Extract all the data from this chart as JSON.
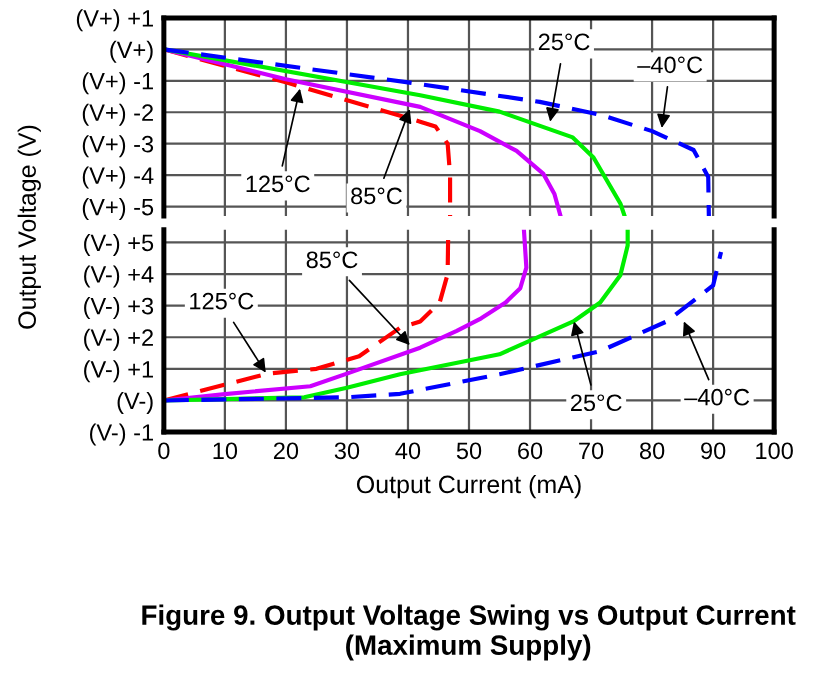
{
  "chart_data": [
    {
      "type": "line",
      "ylabel": "Output Voltage (V)",
      "xlim": [
        0,
        100
      ],
      "xticks": [
        0,
        10,
        20,
        30,
        40,
        50,
        60,
        70,
        80,
        90,
        100
      ],
      "ylim": [
        -5.3,
        1
      ],
      "yticks": [
        {
          "value": 1,
          "label": "(V+) +1"
        },
        {
          "value": 0,
          "label": "(V+)"
        },
        {
          "value": -1,
          "label": "(V+) -1"
        },
        {
          "value": -2,
          "label": "(V+) -2"
        },
        {
          "value": -3,
          "label": "(V+) -3"
        },
        {
          "value": -4,
          "label": "(V+) -4"
        },
        {
          "value": -5,
          "label": "(V+) -5"
        }
      ],
      "tick_labels": "y",
      "grid": true,
      "legend": false,
      "series": [
        {
          "color": "#ff0000",
          "line_style": "dashed",
          "x": [
            0,
            20,
            42,
            44.5,
            46.5,
            46.9,
            46.9
          ],
          "values": [
            0,
            -1.05,
            -2.3,
            -2.45,
            -3.0,
            -4.0,
            -5.3
          ]
        },
        {
          "color": "#cc00ff",
          "line_style": "solid",
          "x": [
            0,
            20,
            42,
            51.8,
            57.8,
            62.2,
            64,
            65
          ],
          "values": [
            0,
            -0.95,
            -1.83,
            -2.6,
            -3.23,
            -3.96,
            -4.6,
            -5.3
          ]
        },
        {
          "color": "#00ee00",
          "line_style": "solid",
          "x": [
            0,
            42,
            55,
            67,
            70.4,
            74.8,
            75.5
          ],
          "values": [
            0,
            -1.46,
            -1.98,
            -2.8,
            -3.44,
            -4.9,
            -5.3
          ]
        },
        {
          "color": "#0000ff",
          "line_style": "dashed",
          "x": [
            0,
            40,
            61.6,
            71.5,
            80,
            86.8,
            89.2,
            89.3
          ],
          "values": [
            0,
            -1.05,
            -1.67,
            -2.08,
            -2.6,
            -3.2,
            -4.06,
            -5.3
          ]
        }
      ],
      "annotations": [
        {
          "text": "125°C",
          "x": 22.3,
          "y": -1.25
        },
        {
          "text": "85°C",
          "x": 40.3,
          "y": -1.9
        },
        {
          "text": "25°C",
          "x": 63.3,
          "y": -2.3
        },
        {
          "text": "–40°C",
          "x": 81.6,
          "y": -2.5
        }
      ]
    },
    {
      "type": "line",
      "title": "Figure 9. Output Voltage Swing vs Output Current (Maximum Supply)",
      "xlabel": "Output Current (mA)",
      "xlim": [
        0,
        100
      ],
      "xticks": [
        0,
        10,
        20,
        30,
        40,
        50,
        60,
        70,
        80,
        90,
        100
      ],
      "ylim": [
        -1,
        5.4
      ],
      "yticks": [
        {
          "value": 5,
          "label": "(V-) +5"
        },
        {
          "value": 4,
          "label": "(V-) +4"
        },
        {
          "value": 3,
          "label": "(V-) +3"
        },
        {
          "value": 2,
          "label": "(V-) +2"
        },
        {
          "value": 1,
          "label": "(V-) +1"
        },
        {
          "value": 0,
          "label": "(V-)"
        },
        {
          "value": -1,
          "label": "(V-) -1"
        }
      ],
      "grid": true,
      "legend": false,
      "series": [
        {
          "color": "#ff0000",
          "line_style": "dashed",
          "x": [
            0,
            17,
            25,
            32,
            38.7,
            42,
            45.2,
            46.5,
            46.6
          ],
          "values": [
            0,
            0.85,
            1.0,
            1.4,
            2.3,
            2.5,
            3.1,
            4.0,
            5.4
          ]
        },
        {
          "color": "#cc00ff",
          "line_style": "solid",
          "x": [
            0,
            10,
            24,
            30,
            42,
            48,
            52,
            56,
            58.4,
            59.4,
            59
          ],
          "values": [
            0,
            0.2,
            0.45,
            0.85,
            1.67,
            2.2,
            2.6,
            3.1,
            3.55,
            4.2,
            5.4
          ]
        },
        {
          "color": "#00ee00",
          "line_style": "solid",
          "x": [
            0,
            23,
            30,
            38.7,
            55,
            67.1,
            71.5,
            74.8,
            76,
            76
          ],
          "values": [
            0,
            0.1,
            0.4,
            0.83,
            1.46,
            2.5,
            3.1,
            3.96,
            4.9,
            5.4
          ]
        },
        {
          "color": "#0000ff",
          "line_style": "dashed",
          "x": [
            0,
            30,
            38.7,
            55,
            71.5,
            82.4,
            90,
            91.3
          ],
          "values": [
            0,
            0.1,
            0.21,
            0.83,
            1.56,
            2.5,
            3.64,
            4.7
          ]
        }
      ],
      "annotations": [
        {
          "text": "125°C",
          "x": 16.7,
          "y": 0.88
        },
        {
          "text": "85°C",
          "x": 40.3,
          "y": 1.75
        },
        {
          "text": "25°C",
          "x": 67.2,
          "y": 2.5
        },
        {
          "text": "–40°C",
          "x": 85.2,
          "y": 2.5
        }
      ]
    }
  ]
}
